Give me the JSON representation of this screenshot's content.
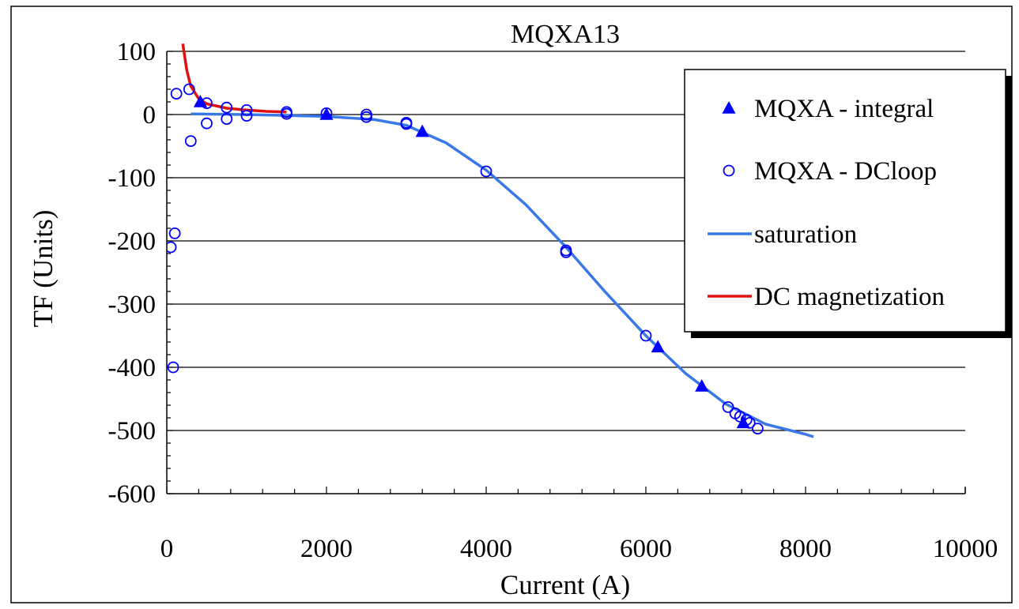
{
  "chart_data": {
    "type": "scatter",
    "title": "MQXA13",
    "xlabel": "Current (A)",
    "ylabel": "TF (Units)",
    "xlim": [
      0,
      10000
    ],
    "ylim": [
      -600,
      100
    ],
    "x_ticks": [
      0,
      2000,
      4000,
      6000,
      8000,
      10000
    ],
    "y_ticks": [
      100,
      0,
      -100,
      -200,
      -300,
      -400,
      -500,
      -600
    ],
    "x_tick_labels": [
      "0",
      "2000",
      "4000",
      "6000",
      "8000",
      "10000"
    ],
    "y_tick_labels": [
      "100",
      "0",
      "-100",
      "-200",
      "-300",
      "-400",
      "-500",
      "-600"
    ],
    "grid": "horizontal major",
    "legend_position": "top-right",
    "series": [
      {
        "name": "MQXA - integral",
        "kind": "marker",
        "marker": "filled-triangle",
        "color": "#0000ff",
        "points": [
          [
            420,
            20
          ],
          [
            2000,
            0
          ],
          [
            3200,
            -27
          ],
          [
            6150,
            -368
          ],
          [
            6700,
            -430
          ],
          [
            7220,
            -488
          ]
        ]
      },
      {
        "name": "MQXA - DCloop",
        "kind": "marker",
        "marker": "open-circle",
        "color": "#0000ff",
        "points": [
          [
            50,
            -210
          ],
          [
            80,
            -400
          ],
          [
            100,
            -188
          ],
          [
            120,
            33
          ],
          [
            280,
            40
          ],
          [
            300,
            -42
          ],
          [
            500,
            18
          ],
          [
            500,
            -14
          ],
          [
            750,
            11
          ],
          [
            750,
            -7
          ],
          [
            1000,
            7
          ],
          [
            1000,
            -2
          ],
          [
            1500,
            4
          ],
          [
            1500,
            1
          ],
          [
            2000,
            2
          ],
          [
            2500,
            0
          ],
          [
            2500,
            -4
          ],
          [
            3000,
            -13
          ],
          [
            3000,
            -15
          ],
          [
            4000,
            -90
          ],
          [
            5000,
            -215
          ],
          [
            5000,
            -218
          ],
          [
            6000,
            -350
          ],
          [
            7030,
            -463
          ],
          [
            7120,
            -473
          ],
          [
            7180,
            -478
          ],
          [
            7260,
            -483
          ],
          [
            7300,
            -488
          ],
          [
            7400,
            -497
          ]
        ]
      },
      {
        "name": "saturation",
        "kind": "line",
        "color": "#3a78e8",
        "points": [
          [
            300,
            1
          ],
          [
            1000,
            0
          ],
          [
            2000,
            -3
          ],
          [
            2600,
            -8
          ],
          [
            3000,
            -17
          ],
          [
            3500,
            -45
          ],
          [
            4000,
            -88
          ],
          [
            4500,
            -143
          ],
          [
            5000,
            -210
          ],
          [
            5500,
            -282
          ],
          [
            6000,
            -350
          ],
          [
            6500,
            -410
          ],
          [
            7000,
            -458
          ],
          [
            7500,
            -490
          ],
          [
            8000,
            -506
          ],
          [
            8100,
            -510
          ]
        ]
      },
      {
        "name": "DC magnetization",
        "kind": "line",
        "color": "#e01010",
        "points": [
          [
            200,
            112
          ],
          [
            250,
            70
          ],
          [
            300,
            45
          ],
          [
            400,
            25
          ],
          [
            500,
            17
          ],
          [
            750,
            10
          ],
          [
            1000,
            7
          ],
          [
            1250,
            5
          ],
          [
            1500,
            4
          ]
        ]
      }
    ]
  }
}
